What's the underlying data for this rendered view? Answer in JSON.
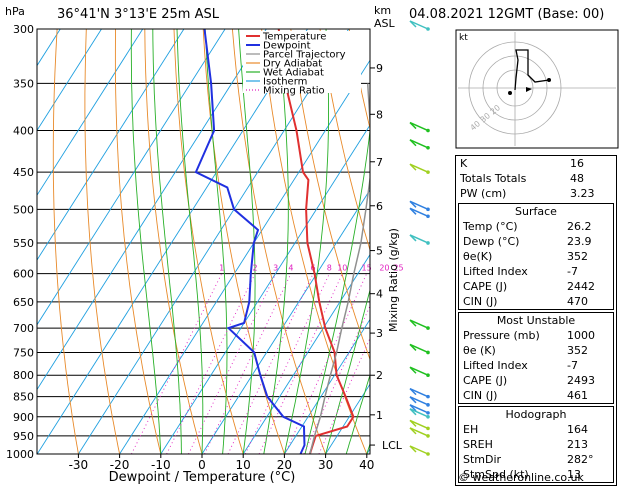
{
  "header": {
    "hpa_label": "hPa",
    "location": "36°41'N  3°13'E  25m  ASL",
    "km_label": "km",
    "asl_label": "ASL",
    "datetime": "04.08.2021  12GMT  (Base: 00)"
  },
  "chart_data": {
    "type": "skew-t",
    "xlabel": "Dewpoint / Temperature (°C)",
    "ylabel_right": "Mixing Ratio (g/kg)",
    "x_ticks": [
      "-30",
      "-20",
      "-10",
      "0",
      "10",
      "20",
      "30",
      "40"
    ],
    "x_tick_values": [
      -30,
      -20,
      -10,
      0,
      10,
      20,
      30,
      40
    ],
    "xlim": [
      -37,
      40
    ],
    "pressure_levels": [
      300,
      350,
      400,
      450,
      500,
      550,
      600,
      650,
      700,
      750,
      800,
      850,
      900,
      950,
      1000
    ],
    "pressure_labels": [
      "300",
      "350",
      "400",
      "450",
      "500",
      "550",
      "600",
      "650",
      "700",
      "750",
      "800",
      "850",
      "900",
      "950",
      "1000"
    ],
    "km_ticks": [
      {
        "km": "9",
        "p": 335
      },
      {
        "km": "8",
        "p": 382
      },
      {
        "km": "7",
        "p": 437
      },
      {
        "km": "6",
        "p": 495
      },
      {
        "km": "5",
        "p": 562
      },
      {
        "km": "4",
        "p": 635
      },
      {
        "km": "3",
        "p": 710
      },
      {
        "km": "2",
        "p": 800
      },
      {
        "km": "1",
        "p": 895
      }
    ],
    "lcl": {
      "label": "LCL",
      "p": 975
    },
    "mixing_ratio_labels": [
      "1",
      "2",
      "3",
      "4",
      "6",
      "8",
      "10",
      "15",
      "20",
      "25"
    ],
    "mixing_ratio_values": [
      1,
      2,
      3,
      4,
      6,
      8,
      10,
      15,
      20,
      25
    ],
    "legend": [
      "Temperature",
      "Dewpoint",
      "Parcel Trajectory",
      "Dry Adiabat",
      "Wet Adiabat",
      "Isotherm",
      "Mixing Ratio"
    ],
    "series": [
      {
        "name": "Temperature",
        "color": "#e03030",
        "p": [
          1000,
          975,
          950,
          925,
          900,
          850,
          800,
          750,
          700,
          650,
          600,
          550,
          500,
          460,
          450,
          400,
          350,
          300
        ],
        "t": [
          26.2,
          25.5,
          24.8,
          31,
          31,
          26,
          20.5,
          16.5,
          10.5,
          5,
          -0.5,
          -7,
          -12.5,
          -16.5,
          -19,
          -27,
          -37,
          -47
        ]
      },
      {
        "name": "Dewpoint",
        "color": "#2030e0",
        "p": [
          1000,
          975,
          950,
          925,
          900,
          850,
          800,
          750,
          700,
          690,
          650,
          600,
          550,
          530,
          500,
          470,
          450,
          400,
          350,
          300
        ],
        "t": [
          23.9,
          23.5,
          22,
          20.5,
          14,
          7,
          2,
          -3,
          -13,
          -10,
          -12,
          -16,
          -20,
          -21,
          -30,
          -35,
          -45,
          -47,
          -55,
          -65
        ]
      },
      {
        "name": "Parcel Trajectory",
        "color": "#909090",
        "p": [
          1000,
          950,
          900,
          850,
          800,
          750,
          700,
          650,
          600,
          550,
          500,
          450,
          400,
          350
        ],
        "t": [
          26.2,
          24.5,
          23,
          21,
          19,
          17,
          14.5,
          12,
          9,
          6,
          2,
          -2.5,
          -9,
          -17
        ]
      }
    ],
    "colors": {
      "temperature": "#e03030",
      "dewpoint": "#2030e0",
      "parcel": "#909090",
      "dry_adiabat": "#e88a2a",
      "wet_adiabat": "#28b028",
      "isotherm": "#20a0e0",
      "mixing_ratio": "#e020c0"
    },
    "wind_barbs": {
      "colors": [
        "#40c0c0",
        "#20c020",
        "#a0d020",
        "#3080e0"
      ]
    }
  },
  "hodograph": {
    "label": "kt",
    "ring_labels": [
      "40",
      "30",
      "20"
    ]
  },
  "indices": [
    {
      "label": "K",
      "value": "16"
    },
    {
      "label": "Totals Totals",
      "value": "48"
    },
    {
      "label": "PW (cm)",
      "value": "3.23"
    }
  ],
  "surface": {
    "title": "Surface",
    "rows": [
      {
        "label": "Temp (°C)",
        "value": "26.2"
      },
      {
        "label": "Dewp (°C)",
        "value": "23.9"
      },
      {
        "label": "θe(K)",
        "value": "352"
      },
      {
        "label": "Lifted Index",
        "value": "-7"
      },
      {
        "label": "CAPE (J)",
        "value": "2442"
      },
      {
        "label": "CIN (J)",
        "value": "470"
      }
    ]
  },
  "most_unstable": {
    "title": "Most Unstable",
    "rows": [
      {
        "label": "Pressure (mb)",
        "value": "1000"
      },
      {
        "label": "θe (K)",
        "value": "352"
      },
      {
        "label": "Lifted Index",
        "value": "-7"
      },
      {
        "label": "CAPE (J)",
        "value": "2493"
      },
      {
        "label": "CIN (J)",
        "value": "461"
      }
    ]
  },
  "hodograph_table": {
    "title": "Hodograph",
    "rows": [
      {
        "label": "EH",
        "value": "164"
      },
      {
        "label": "SREH",
        "value": "213"
      },
      {
        "label": "StmDir",
        "value": "282°"
      },
      {
        "label": "StmSpd (kt)",
        "value": "13"
      }
    ]
  },
  "credit": "© weatheronline.co.uk"
}
